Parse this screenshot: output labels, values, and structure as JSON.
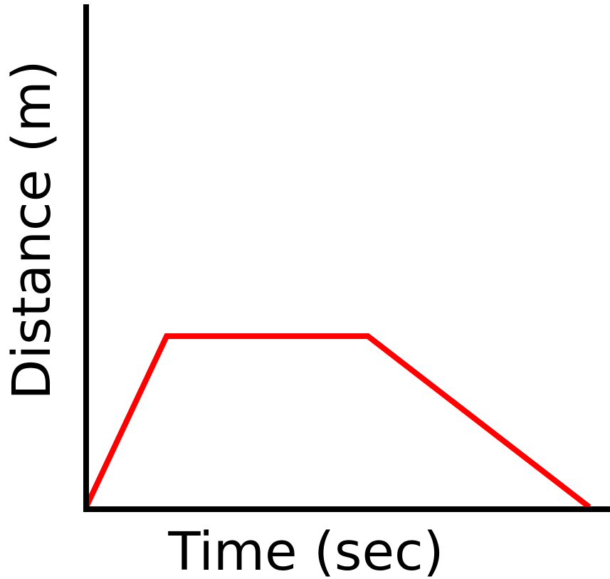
{
  "chart_data": {
    "type": "line",
    "title": "",
    "xlabel": "Time (sec)",
    "ylabel": "Distance (m)",
    "xlim": [
      0,
      10
    ],
    "ylim": [
      0,
      10
    ],
    "grid": false,
    "legend": "none",
    "series": [
      {
        "x": [
          0,
          1.6,
          5.6,
          10
        ],
        "y": [
          0,
          3.4,
          3.4,
          0
        ]
      }
    ],
    "colors": {
      "line": "#ff0000",
      "axes": "#000000",
      "background": "#ffffff"
    }
  }
}
